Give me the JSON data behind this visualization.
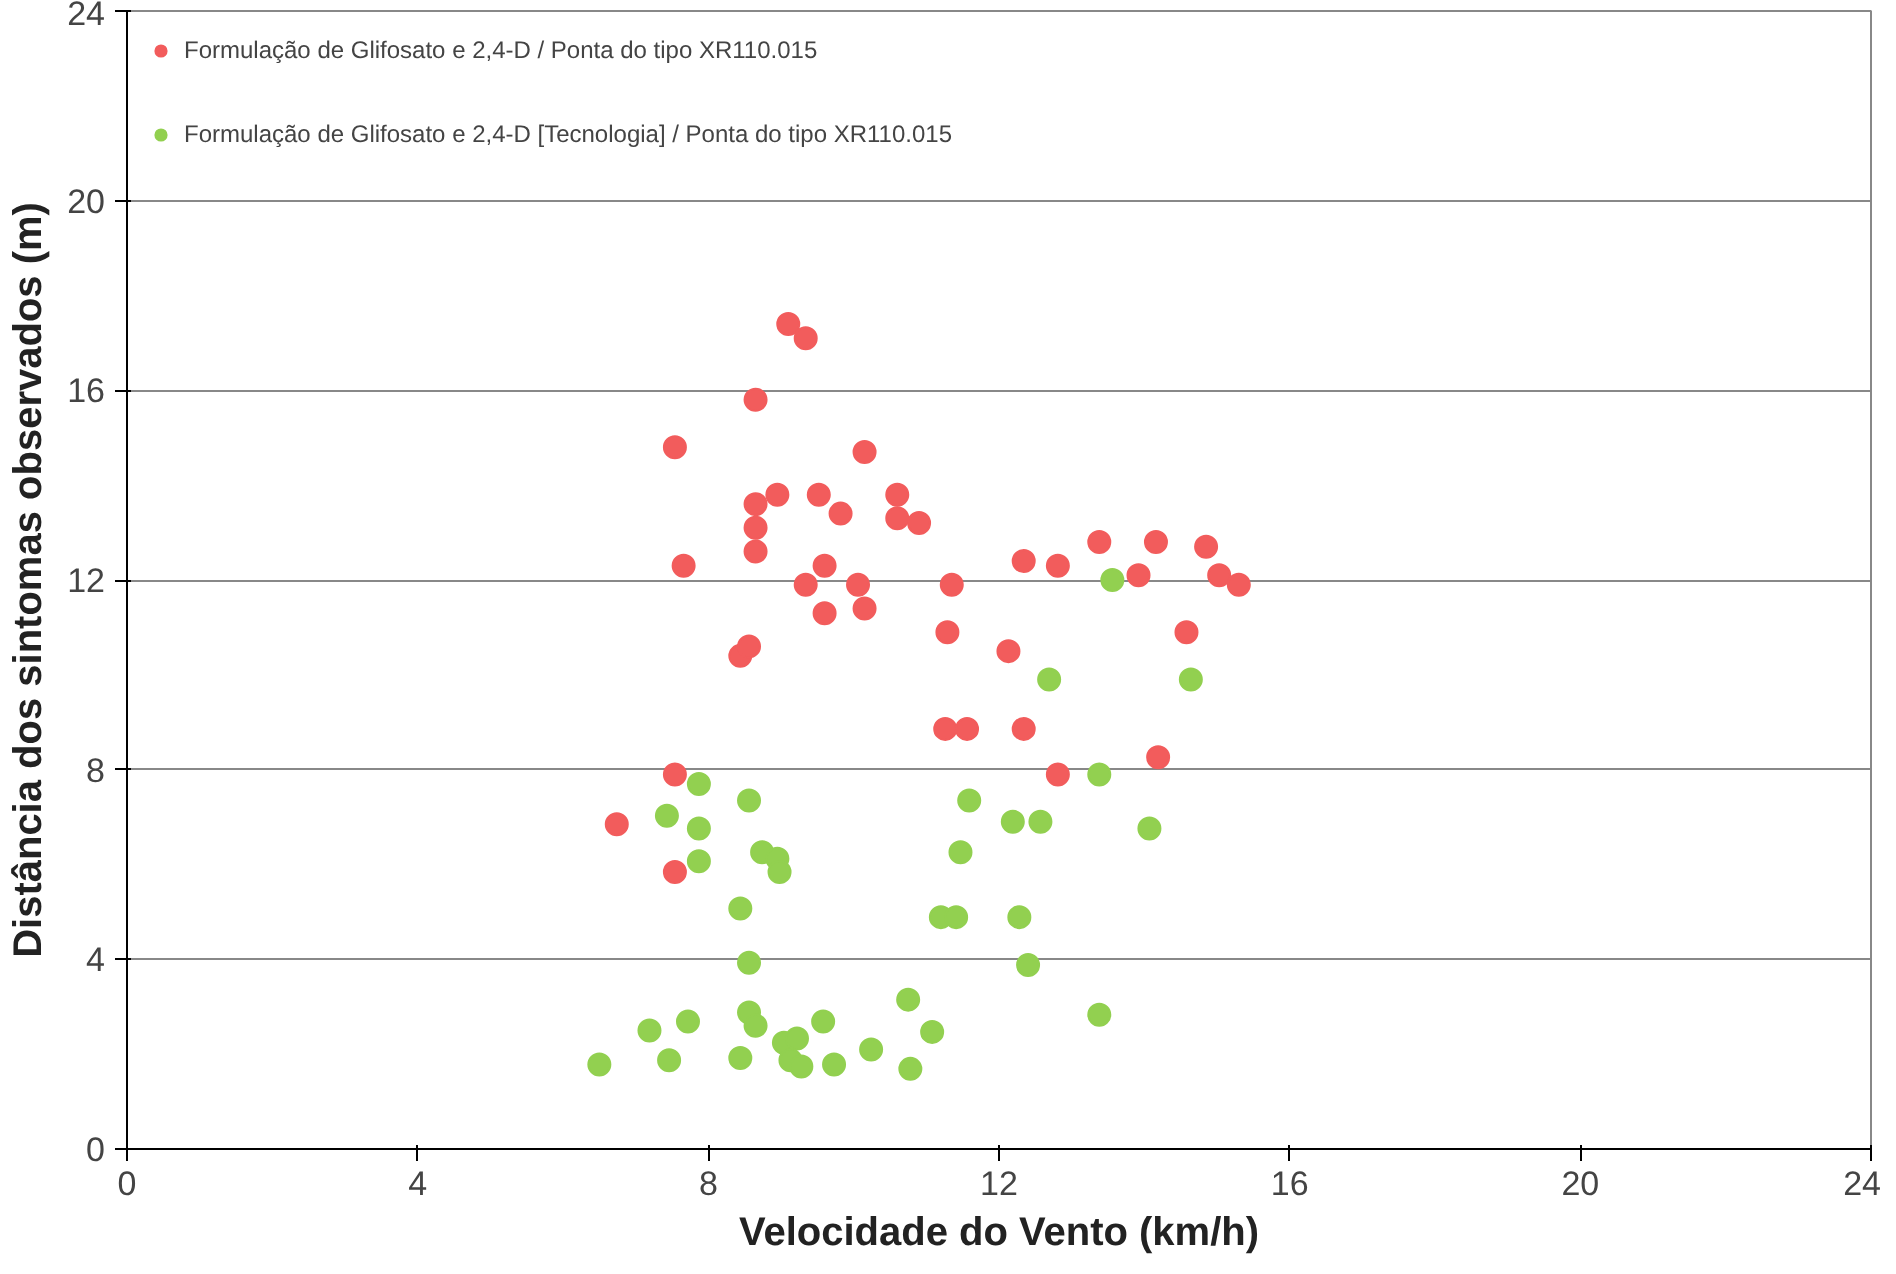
{
  "chart_data": {
    "type": "scatter",
    "xlabel": "Velocidade do Vento (km/h)",
    "ylabel": "Distância dos sintomas observados (m)",
    "xlim": [
      0,
      24
    ],
    "ylim": [
      0,
      24
    ],
    "xticks": [
      0,
      4,
      8,
      12,
      16,
      20,
      24
    ],
    "yticks": [
      0,
      4,
      8,
      12,
      16,
      20,
      24
    ],
    "grid": "y",
    "legend": "top left",
    "marker": "circle",
    "series": [
      {
        "name": "Formulação de Glifosato e 2,4-D / Ponta do tipo XR110.015",
        "color": "#f25c5c",
        "x": [
          6.74,
          7.54,
          7.54,
          7.54,
          7.66,
          8.44,
          8.56,
          8.65,
          8.65,
          8.65,
          8.65,
          8.95,
          9.1,
          9.34,
          9.34,
          9.52,
          9.6,
          9.6,
          9.82,
          10.06,
          10.15,
          10.15,
          10.6,
          10.6,
          10.9,
          11.35,
          11.29,
          11.26,
          11.56,
          12.13,
          12.34,
          12.34,
          12.81,
          12.81,
          13.38,
          13.92,
          14.16,
          14.19,
          14.58,
          14.85,
          15.03,
          15.3
        ],
        "values": [
          6.85,
          14.8,
          5.84,
          7.9,
          12.3,
          10.4,
          10.6,
          15.8,
          13.6,
          13.1,
          12.6,
          13.8,
          17.4,
          17.1,
          11.9,
          13.8,
          12.3,
          11.3,
          13.4,
          11.9,
          11.4,
          14.7,
          13.8,
          13.3,
          13.2,
          11.9,
          10.9,
          8.86,
          8.86,
          10.5,
          12.4,
          8.86,
          12.3,
          7.9,
          12.8,
          12.1,
          12.8,
          8.26,
          10.9,
          12.7,
          12.1,
          11.9
        ]
      },
      {
        "name": "Formulação de Glifosato e 2,4-D [Tecnologia] / Ponta do tipo XR110.015",
        "color": "#92d050",
        "x": [
          6.5,
          7.19,
          7.43,
          7.46,
          7.72,
          7.87,
          7.87,
          7.87,
          8.44,
          8.44,
          8.56,
          8.56,
          8.56,
          8.65,
          8.74,
          8.95,
          8.98,
          9.04,
          9.13,
          9.22,
          9.28,
          9.58,
          9.73,
          10.24,
          10.75,
          10.78,
          11.08,
          11.2,
          11.41,
          11.47,
          11.59,
          12.19,
          12.28,
          12.4,
          12.57,
          12.69,
          13.38,
          13.38,
          13.56,
          14.07,
          14.64
        ],
        "values": [
          1.78,
          2.5,
          7.03,
          1.87,
          2.69,
          7.7,
          6.76,
          6.07,
          5.07,
          1.92,
          7.35,
          3.93,
          2.88,
          2.6,
          6.26,
          6.12,
          5.84,
          2.24,
          1.87,
          2.33,
          1.74,
          2.69,
          1.78,
          2.1,
          3.15,
          1.69,
          2.47,
          4.89,
          4.89,
          6.26,
          7.35,
          6.9,
          4.89,
          3.88,
          6.9,
          9.9,
          7.9,
          2.83,
          12.0,
          6.76,
          9.9
        ]
      }
    ]
  }
}
